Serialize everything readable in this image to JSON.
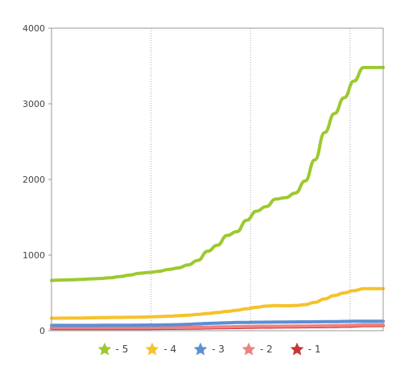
{
  "chart_data": {
    "type": "line",
    "title": "",
    "xlabel": "",
    "ylabel": "",
    "ylim": [
      0,
      4000
    ],
    "yticks": [
      "0",
      "1000",
      "2000",
      "3000",
      "4000"
    ],
    "grid": true,
    "legend_placement": "bottom",
    "x": [
      0,
      1,
      2,
      3,
      4,
      5,
      6,
      7,
      8,
      9,
      10,
      11,
      12,
      13,
      14,
      15,
      16,
      17,
      18,
      19,
      20,
      21,
      22,
      23,
      24,
      25,
      26,
      27,
      28,
      29,
      30,
      31,
      32,
      33,
      34
    ],
    "series": [
      {
        "name": "- 5",
        "color": "#9dc92f",
        "values": [
          665,
          670,
          672,
          678,
          685,
          690,
          700,
          715,
          735,
          760,
          770,
          785,
          810,
          830,
          870,
          930,
          1050,
          1130,
          1260,
          1310,
          1460,
          1580,
          1640,
          1740,
          1760,
          1820,
          1980,
          2260,
          2620,
          2870,
          3080,
          3300,
          3480,
          3480,
          3480
        ]
      },
      {
        "name": "- 4",
        "color": "#f5c22b",
        "values": [
          165,
          166,
          167,
          168,
          170,
          172,
          174,
          176,
          178,
          180,
          183,
          187,
          192,
          198,
          205,
          215,
          228,
          240,
          255,
          270,
          290,
          310,
          325,
          332,
          330,
          332,
          345,
          375,
          420,
          465,
          500,
          530,
          555,
          555,
          555
        ]
      },
      {
        "name": "- 3",
        "color": "#5b8fd4",
        "values": [
          70,
          70,
          70,
          70,
          70,
          71,
          72,
          72,
          72,
          73,
          74,
          76,
          78,
          80,
          84,
          90,
          96,
          100,
          104,
          108,
          110,
          112,
          113,
          114,
          115,
          116,
          117,
          118,
          119,
          120,
          122,
          124,
          126,
          126,
          126
        ]
      },
      {
        "name": "- 2",
        "color": "#f08080",
        "values": [
          40,
          40,
          40,
          40,
          40,
          40,
          40,
          40,
          40,
          40,
          40,
          41,
          42,
          43,
          44,
          45,
          47,
          49,
          51,
          53,
          55,
          57,
          58,
          59,
          60,
          61,
          62,
          63,
          64,
          66,
          68,
          72,
          78,
          78,
          78
        ]
      },
      {
        "name": "- 1",
        "color": "#c93535",
        "values": [
          30,
          30,
          30,
          30,
          30,
          30,
          30,
          30,
          30,
          30,
          30,
          31,
          32,
          33,
          34,
          35,
          37,
          39,
          41,
          43,
          45,
          47,
          48,
          49,
          50,
          51,
          52,
          53,
          54,
          56,
          58,
          62,
          68,
          68,
          68
        ]
      }
    ]
  },
  "legend": {
    "items": [
      {
        "label": "- 5",
        "icon": "star-icon",
        "color": "#9dc92f"
      },
      {
        "label": "- 4",
        "icon": "star-icon",
        "color": "#f5c22b"
      },
      {
        "label": "- 3",
        "icon": "star-icon",
        "color": "#5b8fd4"
      },
      {
        "label": "- 2",
        "icon": "star-icon",
        "color": "#f08080"
      },
      {
        "label": "- 1",
        "icon": "star-icon",
        "color": "#c93535"
      }
    ]
  }
}
